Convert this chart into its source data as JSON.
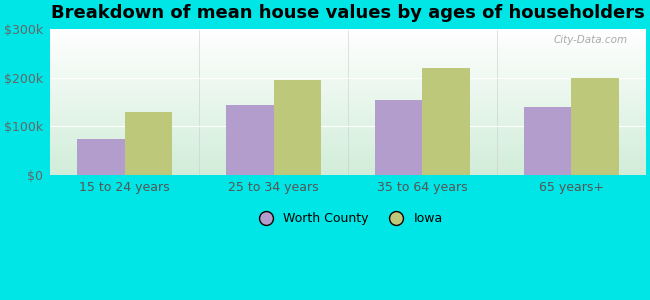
{
  "title": "Breakdown of mean house values by ages of householders",
  "categories": [
    "15 to 24 years",
    "25 to 34 years",
    "35 to 64 years",
    "65 years+"
  ],
  "worth_county": [
    75000,
    145000,
    155000,
    140000
  ],
  "iowa": [
    130000,
    195000,
    220000,
    200000
  ],
  "worth_county_color": "#b39dcc",
  "iowa_color": "#bec87a",
  "background_color": "#00e5e5",
  "ylim": [
    0,
    300000
  ],
  "yticks": [
    0,
    100000,
    200000,
    300000
  ],
  "ytick_labels": [
    "$0",
    "$100k",
    "$200k",
    "$300k"
  ],
  "legend_labels": [
    "Worth County",
    "Iowa"
  ],
  "bar_width": 0.32,
  "title_fontsize": 13,
  "tick_fontsize": 9,
  "legend_fontsize": 9,
  "watermark": "City-Data.com"
}
